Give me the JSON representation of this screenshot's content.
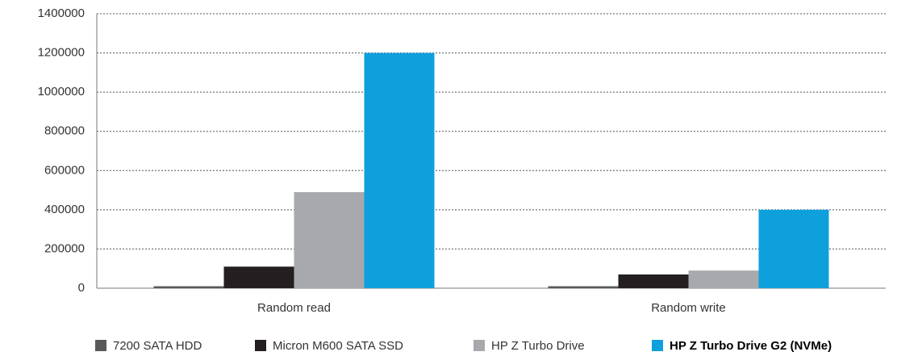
{
  "chart_data": {
    "type": "bar",
    "categories": [
      "Random read",
      "Random write"
    ],
    "series": [
      {
        "name": "7200 SATA HDD",
        "color": "#58595b",
        "values": [
          10000,
          10000
        ]
      },
      {
        "name": "Micron M600 SATA SSD",
        "color": "#231f20",
        "values": [
          110000,
          70000
        ]
      },
      {
        "name": "HP Z Turbo Drive",
        "color": "#a7a9ac",
        "values": [
          490000,
          90000
        ]
      },
      {
        "name": "HP Z Turbo Drive G2 (NVMe)",
        "color": "#0ea0dc",
        "values": [
          1200000,
          400000
        ]
      }
    ],
    "ylim": [
      0,
      1400000
    ],
    "yticks": [
      0,
      200000,
      400000,
      600000,
      800000,
      1000000,
      1200000,
      1400000
    ],
    "grid": true,
    "legend": "bottom"
  }
}
